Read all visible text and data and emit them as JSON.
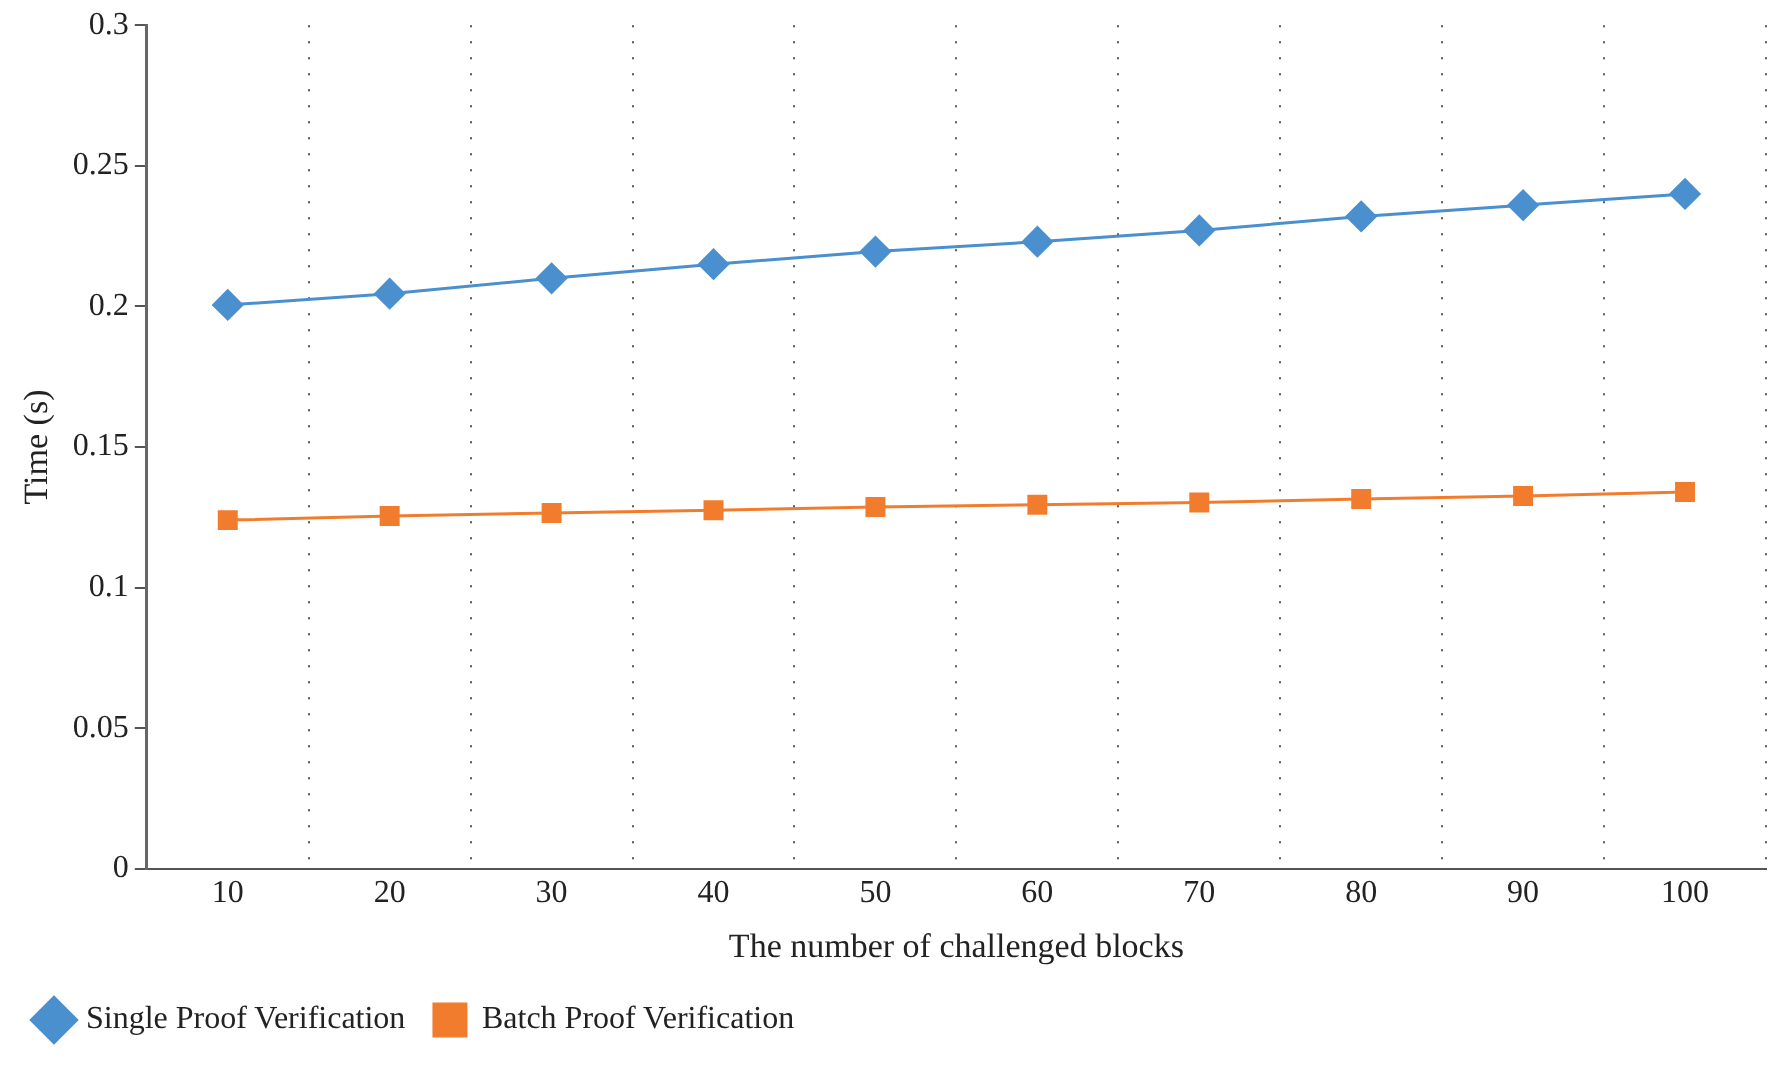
{
  "chart_data": {
    "type": "line",
    "xlabel": "The number of challenged blocks",
    "ylabel": "Time (s)",
    "categories": [
      "10",
      "20",
      "30",
      "40",
      "50",
      "60",
      "70",
      "80",
      "90",
      "100"
    ],
    "series": [
      {
        "name": "Single Proof Verification",
        "color": "#4a8fce",
        "marker": "diamond",
        "values": [
          0.2005,
          0.2045,
          0.21,
          0.215,
          0.2195,
          0.223,
          0.227,
          0.232,
          0.236,
          0.24
        ]
      },
      {
        "name": "Batch Proof Verification",
        "color": "#f27c2e",
        "marker": "square",
        "values": [
          0.124,
          0.1255,
          0.1265,
          0.1275,
          0.1287,
          0.1295,
          0.1303,
          0.1315,
          0.1326,
          0.134
        ]
      }
    ],
    "ylim": [
      0,
      0.3
    ],
    "yticks": [
      0,
      0.05,
      0.1,
      0.15,
      0.2,
      0.25,
      0.3
    ],
    "grid": "x",
    "legend": "bottom left",
    "line_style": "solid"
  }
}
